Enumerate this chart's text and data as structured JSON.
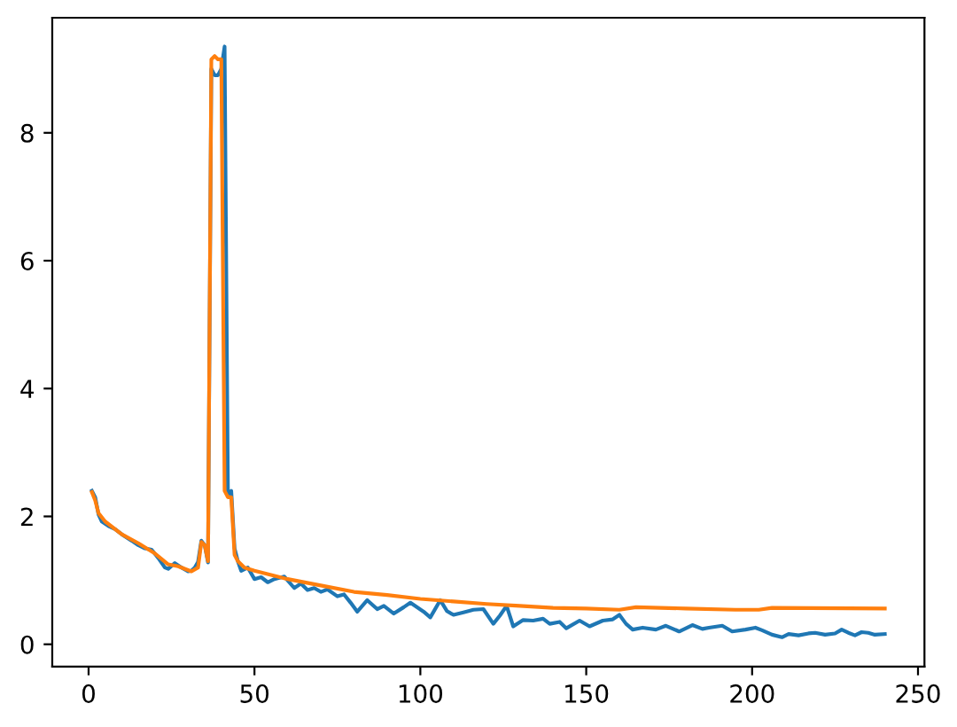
{
  "chart_data": {
    "type": "line",
    "xlim": [
      -10.95,
      251.95
    ],
    "ylim": [
      -0.35,
      9.8
    ],
    "xticks": [
      0,
      50,
      100,
      150,
      200,
      250
    ],
    "yticks": [
      0,
      2,
      4,
      6,
      8
    ],
    "grid": false,
    "marker": "none",
    "line_style": "solid",
    "series": [
      {
        "color": "#1f77b4",
        "x": [
          1,
          2,
          3,
          4,
          6,
          8,
          10,
          13,
          15,
          17,
          19,
          21,
          23,
          24,
          26,
          28,
          30,
          31,
          32,
          33,
          34,
          35,
          36,
          37,
          38,
          39,
          40,
          41,
          42,
          43,
          44,
          45,
          46,
          48,
          50,
          52,
          54,
          56,
          59,
          62,
          64,
          66,
          68,
          70,
          72,
          75,
          77,
          79,
          81,
          84,
          87,
          89,
          92,
          95,
          97,
          101,
          103,
          106,
          108,
          110,
          113,
          116,
          119,
          122,
          124,
          126,
          128,
          131,
          134,
          137,
          139,
          142,
          144,
          148,
          151,
          155,
          158,
          160,
          162,
          164,
          167,
          171,
          174,
          178,
          182,
          185,
          187,
          191,
          194,
          198,
          201,
          203,
          206,
          209,
          211,
          214,
          217,
          219,
          222,
          225,
          227,
          229,
          231,
          233,
          235,
          237,
          240
        ],
        "values": [
          2.4,
          2.3,
          2.03,
          1.92,
          1.85,
          1.8,
          1.72,
          1.62,
          1.55,
          1.5,
          1.48,
          1.35,
          1.2,
          1.18,
          1.27,
          1.2,
          1.14,
          1.15,
          1.2,
          1.29,
          1.62,
          1.55,
          1.28,
          9.0,
          8.9,
          8.9,
          9.0,
          9.35,
          2.35,
          2.4,
          1.5,
          1.3,
          1.15,
          1.2,
          1.02,
          1.05,
          0.97,
          1.02,
          1.06,
          0.88,
          0.95,
          0.85,
          0.88,
          0.82,
          0.86,
          0.75,
          0.78,
          0.65,
          0.51,
          0.69,
          0.55,
          0.6,
          0.48,
          0.58,
          0.65,
          0.51,
          0.42,
          0.69,
          0.52,
          0.46,
          0.5,
          0.54,
          0.55,
          0.32,
          0.45,
          0.6,
          0.28,
          0.38,
          0.37,
          0.4,
          0.32,
          0.35,
          0.25,
          0.37,
          0.28,
          0.37,
          0.39,
          0.46,
          0.32,
          0.23,
          0.26,
          0.23,
          0.29,
          0.2,
          0.3,
          0.24,
          0.26,
          0.29,
          0.2,
          0.23,
          0.26,
          0.22,
          0.15,
          0.11,
          0.16,
          0.14,
          0.17,
          0.18,
          0.15,
          0.17,
          0.23,
          0.18,
          0.14,
          0.19,
          0.18,
          0.15,
          0.16
        ]
      },
      {
        "color": "#ff7f0e",
        "x": [
          1,
          2,
          3,
          5,
          10,
          15,
          20,
          24,
          27,
          31,
          33,
          34,
          35,
          36,
          37,
          38,
          39,
          40,
          41,
          42,
          43,
          44,
          45,
          47,
          50,
          60,
          70,
          80,
          90,
          100,
          110,
          120,
          130,
          140,
          150,
          160,
          165,
          180,
          195,
          202,
          206,
          240
        ],
        "values": [
          2.38,
          2.25,
          2.05,
          1.92,
          1.72,
          1.58,
          1.42,
          1.25,
          1.22,
          1.14,
          1.2,
          1.6,
          1.55,
          1.3,
          9.15,
          9.2,
          9.15,
          9.15,
          2.4,
          2.3,
          2.3,
          1.4,
          1.3,
          1.2,
          1.15,
          1.02,
          0.92,
          0.82,
          0.77,
          0.71,
          0.67,
          0.63,
          0.6,
          0.57,
          0.56,
          0.54,
          0.58,
          0.56,
          0.54,
          0.54,
          0.57,
          0.56
        ]
      }
    ]
  }
}
